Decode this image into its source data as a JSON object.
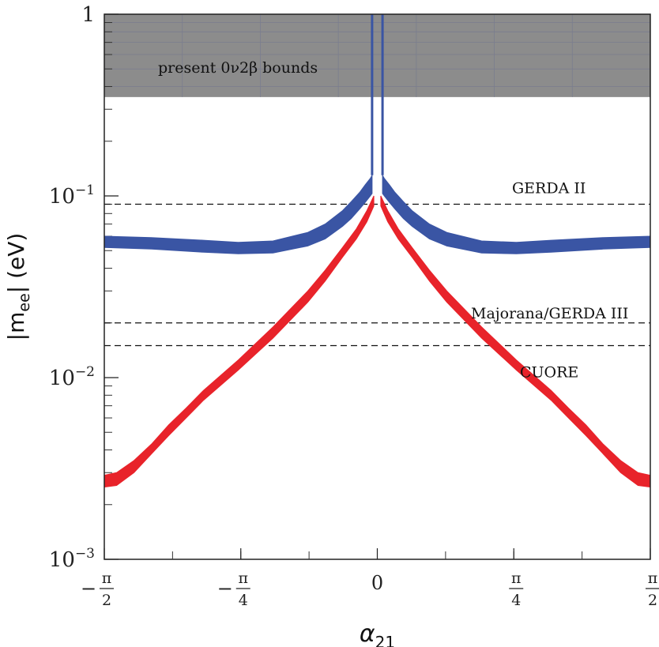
{
  "chart_data": {
    "type": "line",
    "title": "",
    "xlabel": "α",
    "xlabel_sub": "21",
    "ylabel": "|m",
    "ylabel_sub": "ee",
    "ylabel_suffix": "| (eV)",
    "yscale": "log",
    "ylim": [
      0.001,
      1
    ],
    "xlim": [
      -1.5708,
      1.5708
    ],
    "y_ticks": [
      {
        "value": 1,
        "base": "1",
        "exp": ""
      },
      {
        "value": 0.1,
        "base": "10",
        "exp": "−1"
      },
      {
        "value": 0.01,
        "base": "10",
        "exp": "−2"
      },
      {
        "value": 0.001,
        "base": "10",
        "exp": "−3"
      }
    ],
    "x_ticks": [
      {
        "value": -1.5708,
        "sign": "−",
        "num": "π",
        "den": "2"
      },
      {
        "value": -0.7854,
        "sign": "−",
        "num": "π",
        "den": "4"
      },
      {
        "value": 0,
        "sign": "",
        "num": "0",
        "den": ""
      },
      {
        "value": 0.7854,
        "sign": "",
        "num": "π",
        "den": "4"
      },
      {
        "value": 1.5708,
        "sign": "",
        "num": "π",
        "den": "2"
      }
    ],
    "shaded_region": {
      "label": "present 0ν2β bounds",
      "y_from": 0.35,
      "y_to": 1,
      "color": "#8c8c8c"
    },
    "hlines": [
      {
        "name": "GERDA II",
        "label": "GERDA II",
        "y": 0.09
      },
      {
        "name": "Majorana/GERDA III",
        "label": "Majorana/GERDA III",
        "y": 0.02
      },
      {
        "name": "CUORE",
        "label": "CUORE",
        "y": 0.015
      }
    ],
    "series": [
      {
        "name": "blue band",
        "color": "#3a55a4",
        "x": [
          -1.5708,
          -1.3,
          -1.0,
          -0.8,
          -0.6,
          -0.4,
          -0.3,
          -0.2,
          -0.15,
          -0.1,
          -0.07,
          -0.04,
          -0.03
        ],
        "upper": [
          0.06,
          0.059,
          0.057,
          0.0555,
          0.0565,
          0.063,
          0.07,
          0.083,
          0.093,
          0.105,
          0.115,
          0.125,
          0.13
        ],
        "lower": [
          0.052,
          0.051,
          0.049,
          0.048,
          0.0485,
          0.053,
          0.058,
          0.068,
          0.075,
          0.085,
          0.092,
          0.1,
          0.103
        ]
      },
      {
        "name": "blue band",
        "color": "#3a55a4",
        "x": [
          0.03,
          0.04,
          0.07,
          0.1,
          0.15,
          0.2,
          0.3,
          0.4,
          0.6,
          0.8,
          1.0,
          1.3,
          1.5708
        ],
        "upper": [
          0.13,
          0.125,
          0.115,
          0.105,
          0.093,
          0.083,
          0.07,
          0.063,
          0.0565,
          0.0555,
          0.057,
          0.059,
          0.06
        ],
        "lower": [
          0.103,
          0.1,
          0.092,
          0.085,
          0.075,
          0.068,
          0.058,
          0.053,
          0.0485,
          0.048,
          0.049,
          0.051,
          0.052
        ]
      },
      {
        "name": "red band",
        "color": "#e8232a",
        "x": [
          -1.5708,
          -1.5,
          -1.4,
          -1.3,
          -1.2,
          -1.1,
          -1.0,
          -0.8,
          -0.6,
          -0.4,
          -0.3,
          -0.2,
          -0.12,
          -0.06,
          -0.02
        ],
        "upper": [
          0.0029,
          0.003,
          0.0035,
          0.0043,
          0.0055,
          0.0068,
          0.0085,
          0.0125,
          0.019,
          0.03,
          0.039,
          0.052,
          0.066,
          0.083,
          0.1
        ],
        "lower": [
          0.0025,
          0.00255,
          0.003,
          0.0038,
          0.0048,
          0.006,
          0.0075,
          0.011,
          0.0165,
          0.026,
          0.034,
          0.046,
          0.058,
          0.072,
          0.088
        ]
      },
      {
        "name": "red band",
        "color": "#e8232a",
        "x": [
          0.02,
          0.06,
          0.12,
          0.2,
          0.3,
          0.4,
          0.6,
          0.8,
          1.0,
          1.1,
          1.2,
          1.3,
          1.4,
          1.5,
          1.5708
        ],
        "upper": [
          0.1,
          0.083,
          0.066,
          0.052,
          0.039,
          0.03,
          0.019,
          0.0125,
          0.0085,
          0.0068,
          0.0055,
          0.0043,
          0.0035,
          0.003,
          0.0029
        ],
        "lower": [
          0.088,
          0.072,
          0.058,
          0.046,
          0.034,
          0.026,
          0.0165,
          0.011,
          0.0075,
          0.006,
          0.0048,
          0.0038,
          0.003,
          0.00255,
          0.0025
        ]
      }
    ],
    "vertical_lines": [
      {
        "name": "left blue spike",
        "x": -0.03,
        "y_from": 0.13,
        "y_to": 1
      },
      {
        "name": "right blue spike",
        "x": 0.03,
        "y_from": 0.13,
        "y_to": 1
      }
    ]
  }
}
